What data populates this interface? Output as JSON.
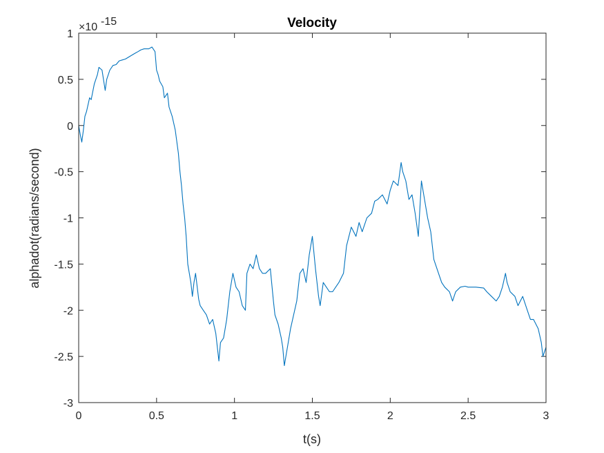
{
  "chart_data": {
    "type": "line",
    "title": "Velocity",
    "xlabel": "t(s)",
    "ylabel": "alphadot(radians/second)",
    "axis_exponent": {
      "base": "×10",
      "power": "-15"
    },
    "xlim": [
      0,
      3
    ],
    "ylim": [
      -3,
      1
    ],
    "xticks": [
      0,
      0.5,
      1,
      1.5,
      2,
      2.5,
      3
    ],
    "xtick_labels": [
      "0",
      "0.5",
      "1",
      "1.5",
      "2",
      "2.5",
      "3"
    ],
    "yticks": [
      -3,
      -2.5,
      -2,
      -1.5,
      -1,
      -0.5,
      0,
      0.5,
      1
    ],
    "ytick_labels": [
      "-3",
      "-2.5",
      "-2",
      "-1.5",
      "-1",
      "-0.5",
      "0",
      "0.5",
      "1"
    ],
    "grid": false,
    "legend": "none",
    "line_color": "#0072BD",
    "series": [
      {
        "x": [
          0,
          0.01,
          0.02,
          0.03,
          0.04,
          0.05,
          0.07,
          0.08,
          0.1,
          0.12,
          0.13,
          0.15,
          0.17,
          0.18,
          0.2,
          0.22,
          0.24,
          0.26,
          0.28,
          0.3,
          0.33,
          0.36,
          0.38,
          0.4,
          0.42,
          0.45,
          0.47,
          0.49,
          0.5,
          0.51,
          0.52,
          0.54,
          0.55,
          0.57,
          0.58,
          0.6,
          0.62,
          0.64,
          0.65,
          0.66,
          0.67,
          0.68,
          0.69,
          0.7,
          0.72,
          0.73,
          0.74,
          0.75,
          0.77,
          0.78,
          0.8,
          0.82,
          0.84,
          0.86,
          0.88,
          0.9,
          0.91,
          0.93,
          0.95,
          0.97,
          0.99,
          1.01,
          1.03,
          1.05,
          1.07,
          1.08,
          1.1,
          1.12,
          1.14,
          1.16,
          1.18,
          1.2,
          1.23,
          1.25,
          1.26,
          1.28,
          1.3,
          1.31,
          1.32,
          1.34,
          1.36,
          1.38,
          1.4,
          1.42,
          1.44,
          1.46,
          1.48,
          1.5,
          1.52,
          1.54,
          1.55,
          1.57,
          1.59,
          1.61,
          1.63,
          1.65,
          1.67,
          1.7,
          1.72,
          1.75,
          1.78,
          1.8,
          1.82,
          1.85,
          1.88,
          1.9,
          1.92,
          1.95,
          1.98,
          2,
          2.02,
          2.05,
          2.07,
          2.08,
          2.1,
          2.12,
          2.14,
          2.16,
          2.18,
          2.2,
          2.22,
          2.24,
          2.26,
          2.28,
          2.3,
          2.33,
          2.35,
          2.38,
          2.4,
          2.42,
          2.45,
          2.48,
          2.5,
          2.55,
          2.6,
          2.62,
          2.65,
          2.68,
          2.7,
          2.72,
          2.74,
          2.75,
          2.77,
          2.8,
          2.82,
          2.85,
          2.88,
          2.9,
          2.92,
          2.95,
          2.97,
          2.98,
          3
        ],
        "y": [
          0.0,
          -0.1,
          -0.18,
          -0.05,
          0.1,
          0.15,
          0.3,
          0.28,
          0.45,
          0.55,
          0.63,
          0.6,
          0.38,
          0.5,
          0.6,
          0.65,
          0.66,
          0.7,
          0.71,
          0.72,
          0.75,
          0.78,
          0.8,
          0.82,
          0.83,
          0.83,
          0.85,
          0.8,
          0.6,
          0.55,
          0.48,
          0.42,
          0.3,
          0.35,
          0.2,
          0.1,
          -0.05,
          -0.3,
          -0.5,
          -0.65,
          -0.85,
          -1.0,
          -1.2,
          -1.5,
          -1.7,
          -1.85,
          -1.7,
          -1.6,
          -1.88,
          -1.95,
          -2.0,
          -2.05,
          -2.15,
          -2.1,
          -2.25,
          -2.55,
          -2.35,
          -2.3,
          -2.1,
          -1.8,
          -1.6,
          -1.75,
          -1.8,
          -1.95,
          -2.0,
          -1.6,
          -1.5,
          -1.55,
          -1.4,
          -1.55,
          -1.6,
          -1.6,
          -1.55,
          -1.9,
          -2.05,
          -2.15,
          -2.3,
          -2.4,
          -2.6,
          -2.4,
          -2.2,
          -2.05,
          -1.9,
          -1.6,
          -1.55,
          -1.7,
          -1.4,
          -1.2,
          -1.55,
          -1.85,
          -1.95,
          -1.7,
          -1.75,
          -1.8,
          -1.8,
          -1.75,
          -1.7,
          -1.6,
          -1.3,
          -1.1,
          -1.2,
          -1.05,
          -1.15,
          -1.0,
          -0.95,
          -0.82,
          -0.8,
          -0.75,
          -0.85,
          -0.7,
          -0.6,
          -0.65,
          -0.4,
          -0.5,
          -0.6,
          -0.8,
          -0.75,
          -0.95,
          -1.2,
          -0.6,
          -0.8,
          -1.0,
          -1.15,
          -1.45,
          -1.55,
          -1.7,
          -1.75,
          -1.8,
          -1.9,
          -1.8,
          -1.75,
          -1.74,
          -1.75,
          -1.75,
          -1.76,
          -1.8,
          -1.85,
          -1.9,
          -1.85,
          -1.75,
          -1.6,
          -1.7,
          -1.8,
          -1.85,
          -1.95,
          -1.85,
          -2.0,
          -2.1,
          -2.1,
          -2.2,
          -2.35,
          -2.5,
          -2.4
        ]
      }
    ]
  }
}
